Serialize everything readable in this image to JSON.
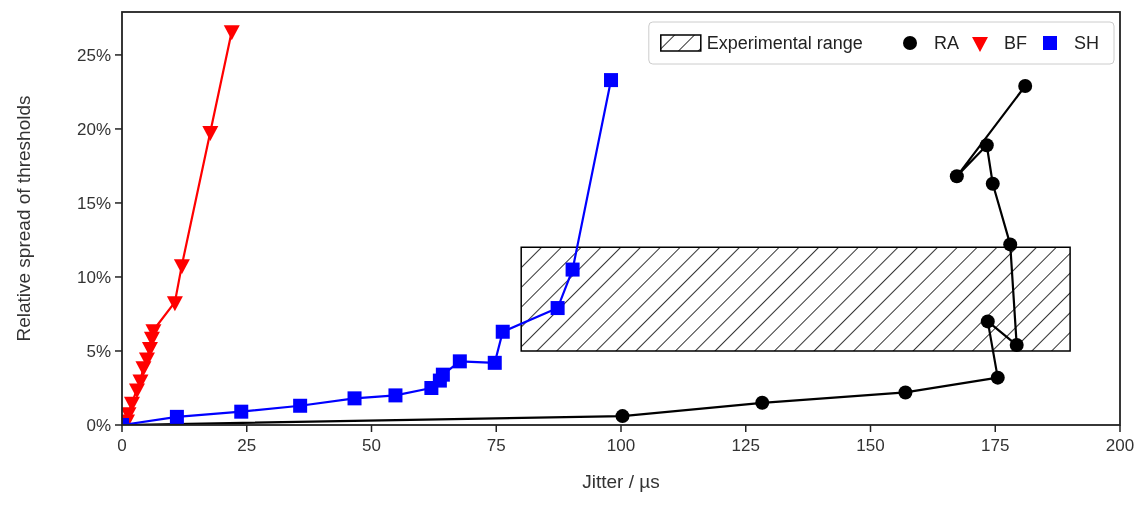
{
  "chart_data": {
    "type": "line",
    "xlabel": "Jitter / µs",
    "ylabel": "Relative spread of thresholds",
    "xlim": [
      0,
      200
    ],
    "xticks": [
      0,
      25,
      50,
      75,
      100,
      125,
      150,
      175,
      200
    ],
    "ylim": [
      0,
      27.9
    ],
    "yticks": [
      {
        "value": 0,
        "label": "0%"
      },
      {
        "value": 5,
        "label": "5%"
      },
      {
        "value": 10,
        "label": "10%"
      },
      {
        "value": 15,
        "label": "15%"
      },
      {
        "value": 20,
        "label": "20%"
      },
      {
        "value": 25,
        "label": "25%"
      }
    ],
    "grid": false,
    "legend": "top right",
    "line_style": "solid",
    "series": [
      {
        "type": "area",
        "name": "Experimental range",
        "color": "#000000",
        "x": [
          80,
          80,
          190,
          190,
          80
        ],
        "values": [
          5,
          12,
          12,
          5,
          5
        ],
        "marker": "none"
      },
      {
        "name": "RA",
        "color": "#000000",
        "marker": "circle",
        "x": [
          0,
          100.3,
          128.3,
          157,
          175.5,
          173.5,
          179.3,
          178,
          174.5,
          173.3,
          167.3,
          181
        ],
        "values": [
          0,
          0.6,
          1.5,
          2.2,
          3.2,
          7.0,
          5.4,
          12.2,
          16.3,
          18.9,
          16.8,
          22.9
        ]
      },
      {
        "name": "BF",
        "color": "#ff0000",
        "marker": "triangle",
        "x": [
          1.0,
          1.3,
          2.0,
          3.0,
          3.7,
          4.3,
          5.0,
          5.6,
          6.0,
          6.3,
          10.6,
          12.0,
          17.7,
          22.0
        ],
        "values": [
          0.3,
          0.8,
          1.5,
          2.4,
          3.0,
          3.9,
          4.5,
          5.2,
          5.9,
          6.4,
          8.3,
          10.8,
          19.8,
          26.6
        ]
      },
      {
        "name": "SH",
        "color": "#0000ff",
        "marker": "square",
        "x": [
          0,
          11.0,
          23.9,
          35.7,
          46.6,
          54.8,
          62.0,
          63.7,
          64.3,
          67.7,
          74.7,
          76.3,
          87.3,
          90.3,
          98.0
        ],
        "values": [
          0,
          0.55,
          0.9,
          1.3,
          1.8,
          2.0,
          2.5,
          3.0,
          3.4,
          4.3,
          4.2,
          6.3,
          7.9,
          10.5,
          23.3
        ]
      }
    ]
  }
}
